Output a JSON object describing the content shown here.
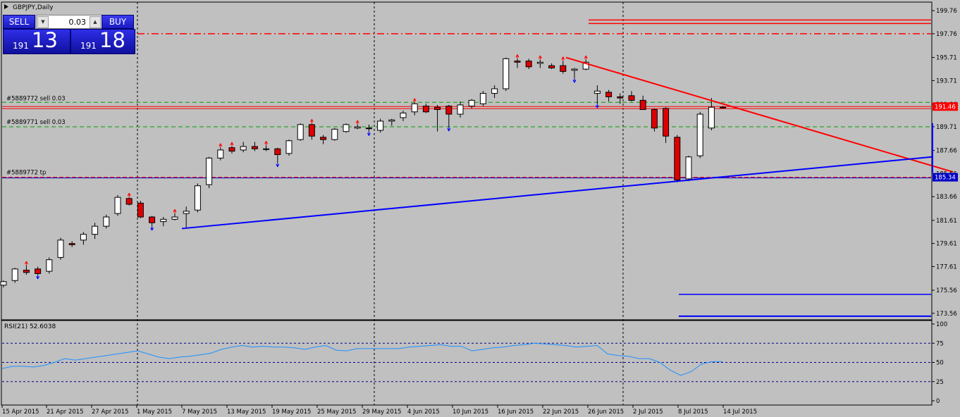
{
  "title": "GBPJPY,Daily",
  "trade_panel": {
    "sell_label": "SELL",
    "buy_label": "BUY",
    "lot": "0.03",
    "sell_price_small": "191",
    "sell_price_big": "13",
    "buy_price_small": "191",
    "buy_price_big": "18"
  },
  "main_price_axis": [
    "199.76",
    "197.76",
    "195.71",
    "193.71",
    "191.66",
    "189.71",
    "187.66",
    "185.66",
    "183.66",
    "181.61",
    "179.61",
    "177.61",
    "175.56",
    "173.56"
  ],
  "current_price": "191.46",
  "tp_price": "185.34",
  "order_labels": [
    "#5889772 sell 0.03",
    "#5889771 sell 0.03",
    "#5889772 tp"
  ],
  "rsi": {
    "title": "RSI(21) 52.6038",
    "levels": [
      "100",
      "75",
      "50",
      "25",
      "0"
    ],
    "values": [
      42,
      45,
      45,
      44,
      46,
      50,
      55,
      53,
      55,
      57,
      59,
      61,
      63,
      65,
      61,
      57,
      55,
      57,
      58,
      60,
      62,
      67,
      70,
      72,
      70,
      71,
      70,
      70,
      69,
      67,
      70,
      72,
      66,
      65,
      68,
      68,
      68,
      68,
      68,
      70,
      71,
      72,
      73,
      71,
      71,
      65,
      67,
      69,
      70,
      72,
      73,
      75,
      74,
      73,
      72,
      70,
      71,
      72,
      61,
      59,
      58,
      55,
      55,
      50,
      40,
      33,
      38,
      48,
      51,
      51
    ]
  },
  "date_labels": [
    "15 Apr 2015",
    "21 Apr 2015",
    "27 Apr 2015",
    "1 May 2015",
    "7 May 2015",
    "13 May 2015",
    "19 May 2015",
    "25 May 2015",
    "29 May 2015",
    "4 Jun 2015",
    "10 Jun 2015",
    "16 Jun 2015",
    "22 Jun 2015",
    "26 Jun 2015",
    "2 Jul 2015",
    "8 Jul 2015",
    "14 Jul 2015"
  ],
  "chart_data": {
    "type": "candlestick",
    "symbol": "GBPJPY",
    "timeframe": "Daily",
    "ylim": [
      173.0,
      200.5
    ],
    "candles": [
      [
        176.0,
        176.4,
        175.8,
        176.3
      ],
      [
        176.4,
        177.5,
        176.2,
        177.4
      ],
      [
        177.3,
        177.7,
        176.9,
        177.1
      ],
      [
        177.4,
        177.6,
        176.9,
        177.0
      ],
      [
        177.2,
        178.4,
        177.0,
        178.2
      ],
      [
        178.4,
        180.1,
        178.2,
        179.9
      ],
      [
        179.6,
        179.8,
        179.3,
        179.5
      ],
      [
        179.9,
        180.6,
        179.5,
        180.4
      ],
      [
        180.4,
        181.4,
        180.0,
        181.1
      ],
      [
        181.1,
        182.1,
        180.9,
        181.9
      ],
      [
        182.2,
        183.8,
        182.0,
        183.6
      ],
      [
        183.5,
        183.6,
        182.9,
        183.0
      ],
      [
        183.1,
        183.3,
        181.8,
        181.9
      ],
      [
        181.9,
        182.0,
        181.1,
        181.4
      ],
      [
        181.5,
        181.9,
        181.1,
        181.7
      ],
      [
        181.7,
        182.2,
        181.6,
        181.9
      ],
      [
        182.2,
        182.8,
        181.0,
        182.4
      ],
      [
        182.5,
        184.8,
        182.3,
        184.6
      ],
      [
        184.7,
        187.1,
        184.4,
        187.0
      ],
      [
        187.0,
        187.9,
        186.8,
        187.7
      ],
      [
        187.9,
        188.0,
        187.4,
        187.6
      ],
      [
        187.7,
        188.4,
        187.5,
        188.0
      ],
      [
        188.0,
        188.4,
        187.6,
        187.8
      ],
      [
        187.8,
        188.1,
        187.6,
        187.8
      ],
      [
        187.8,
        187.9,
        186.6,
        187.3
      ],
      [
        187.4,
        188.6,
        187.2,
        188.5
      ],
      [
        188.6,
        190.0,
        188.5,
        189.9
      ],
      [
        189.9,
        190.0,
        188.6,
        188.9
      ],
      [
        188.8,
        189.0,
        188.2,
        188.6
      ],
      [
        188.6,
        189.6,
        188.5,
        189.5
      ],
      [
        189.3,
        190.0,
        189.2,
        189.9
      ],
      [
        189.6,
        189.9,
        189.5,
        189.7
      ],
      [
        189.6,
        189.9,
        189.3,
        189.6
      ],
      [
        189.4,
        190.4,
        189.2,
        190.2
      ],
      [
        190.2,
        190.4,
        189.8,
        190.3
      ],
      [
        190.5,
        191.1,
        190.2,
        190.9
      ],
      [
        191.0,
        191.8,
        190.7,
        191.7
      ],
      [
        191.5,
        191.7,
        190.9,
        191.0
      ],
      [
        191.4,
        191.6,
        189.3,
        191.2
      ],
      [
        191.5,
        191.6,
        189.7,
        190.8
      ],
      [
        190.8,
        191.9,
        190.5,
        191.6
      ],
      [
        191.5,
        192.1,
        191.3,
        192.0
      ],
      [
        191.7,
        192.8,
        191.5,
        192.6
      ],
      [
        192.6,
        193.3,
        192.2,
        193.0
      ],
      [
        193.0,
        195.7,
        192.8,
        195.6
      ],
      [
        195.4,
        195.6,
        194.8,
        195.3
      ],
      [
        195.4,
        195.6,
        194.7,
        194.9
      ],
      [
        195.2,
        195.5,
        194.8,
        195.3
      ],
      [
        195.0,
        195.2,
        194.7,
        194.8
      ],
      [
        195.0,
        195.4,
        194.3,
        194.5
      ],
      [
        194.6,
        194.8,
        193.9,
        194.7
      ],
      [
        194.7,
        195.5,
        194.6,
        195.3
      ],
      [
        192.6,
        193.3,
        191.7,
        192.8
      ],
      [
        192.7,
        192.9,
        191.9,
        192.3
      ],
      [
        192.3,
        192.6,
        191.7,
        192.2
      ],
      [
        192.4,
        192.8,
        191.9,
        192.0
      ],
      [
        192.0,
        192.4,
        191.4,
        191.2
      ],
      [
        191.2,
        191.3,
        189.3,
        189.6
      ],
      [
        191.3,
        191.4,
        188.3,
        188.9
      ],
      [
        188.8,
        189.0,
        184.9,
        185.1
      ],
      [
        185.2,
        187.2,
        185.0,
        187.1
      ],
      [
        187.2,
        191.0,
        187.0,
        190.8
      ],
      [
        189.6,
        192.2,
        189.4,
        191.4
      ],
      [
        191.4,
        191.5,
        191.3,
        191.4
      ]
    ],
    "lines": {
      "order_1_sell_open": 191.46,
      "order_2_sell_open": 189.71,
      "order_1_tp": 185.34,
      "dash_dot_red": 197.76,
      "solid_red_1": 198.95,
      "solid_red_2": 198.65,
      "blue_h_1": 175.2,
      "blue_h_2": 173.56
    }
  }
}
